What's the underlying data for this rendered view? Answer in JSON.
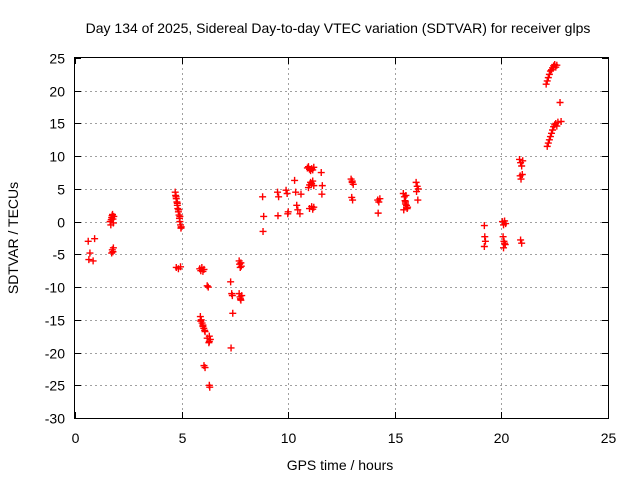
{
  "chart_data": {
    "type": "scatter",
    "title": "Day 134 of 2025, Sidereal Day-to-day VTEC variation (SDTVAR) for receiver glps",
    "xlabel": "GPS time / hours",
    "ylabel": "SDTVAR / TECUs",
    "xlim": [
      0,
      25
    ],
    "ylim": [
      -30,
      25
    ],
    "x_ticks": [
      0,
      5,
      10,
      15,
      20,
      25
    ],
    "y_ticks": [
      -30,
      -25,
      -20,
      -15,
      -10,
      -5,
      0,
      5,
      10,
      15,
      20,
      25
    ],
    "grid": true,
    "marker": "+",
    "series_color": "#ff0000",
    "series": [
      {
        "name": "SDTVAR",
        "x": [
          0.62,
          0.92,
          0.65,
          0.85,
          0.7,
          1.65,
          1.68,
          1.7,
          1.72,
          1.74,
          1.76,
          1.78,
          1.8,
          1.82,
          1.72,
          1.75,
          1.78,
          1.8,
          4.7,
          4.72,
          4.75,
          4.78,
          4.8,
          4.82,
          4.85,
          4.88,
          4.9,
          4.92,
          4.95,
          4.97,
          4.74,
          4.8,
          4.86,
          4.92,
          4.98,
          4.75,
          4.85,
          4.95,
          5.85,
          5.9,
          5.95,
          6.0,
          6.05,
          5.88,
          5.92,
          5.96,
          6.0,
          6.04,
          6.08,
          5.9,
          6.0,
          6.1,
          6.05,
          6.1,
          6.2,
          6.25,
          6.3,
          6.35,
          6.28,
          6.3,
          6.32,
          6.2,
          6.3,
          7.3,
          7.35,
          7.4,
          7.32,
          7.38,
          7.7,
          7.72,
          7.75,
          7.78,
          7.8,
          7.7,
          7.74,
          7.78,
          7.82,
          7.76,
          8.8,
          8.85,
          8.82,
          9.5,
          9.55,
          9.52,
          9.9,
          9.95,
          10.0,
          9.98,
          10.3,
          10.35,
          10.4,
          10.45,
          10.6,
          10.55,
          10.9,
          10.95,
          11.0,
          11.05,
          11.1,
          11.15,
          11.2,
          10.95,
          11.0,
          11.05,
          11.1,
          11.15,
          11.2,
          11.0,
          11.1,
          11.15,
          11.2,
          11.55,
          11.6,
          11.58,
          12.95,
          13.0,
          13.05,
          12.98,
          13.02,
          13.0,
          14.2,
          14.25,
          14.3,
          14.22,
          15.4,
          15.45,
          15.5,
          15.55,
          15.6,
          15.42,
          15.48,
          15.52,
          15.58,
          15.5,
          16.0,
          16.05,
          16.1,
          16.02,
          16.08,
          19.2,
          19.22,
          19.25,
          19.2,
          20.05,
          20.1,
          20.15,
          20.2,
          20.08,
          20.12,
          20.18,
          20.1,
          20.15,
          20.85,
          20.9,
          20.95,
          21.0,
          20.88,
          20.92,
          20.98,
          20.9,
          20.95,
          22.1,
          22.15,
          22.2,
          22.25,
          22.3,
          22.35,
          22.4,
          22.45,
          22.5,
          22.55,
          22.6,
          22.15,
          22.2,
          22.25,
          22.3,
          22.35,
          22.4,
          22.45,
          22.5,
          22.55,
          22.6,
          22.65,
          22.75,
          22.8
        ],
        "y": [
          -3.0,
          -2.6,
          -5.8,
          -6.0,
          -4.8,
          0.0,
          -0.5,
          0.3,
          0.6,
          0.9,
          1.1,
          0.4,
          -0.2,
          0.8,
          -4.8,
          -4.3,
          -4.6,
          -4.0,
          4.5,
          4.0,
          3.5,
          3.0,
          2.5,
          2.0,
          1.5,
          1.0,
          0.5,
          0.0,
          -0.5,
          -1.0,
          3.8,
          2.8,
          1.8,
          0.8,
          -0.8,
          -7.0,
          -7.2,
          -6.9,
          -7.2,
          -7.5,
          -7.0,
          -7.6,
          -7.3,
          -14.5,
          -15.0,
          -15.5,
          -16.0,
          -16.3,
          -16.6,
          -15.2,
          -15.8,
          -16.8,
          -22.0,
          -22.3,
          -9.8,
          -10.0,
          -17.5,
          -18.0,
          -18.5,
          -25.0,
          -25.3,
          -17.8,
          -18.3,
          -9.2,
          -11.0,
          -14.0,
          -19.3,
          -11.3,
          -6.0,
          -6.5,
          -7.0,
          -6.3,
          -6.8,
          -11.0,
          -11.5,
          -12.0,
          -11.3,
          -11.8,
          3.8,
          0.8,
          -1.5,
          4.5,
          3.8,
          0.9,
          4.8,
          4.3,
          1.5,
          1.2,
          6.3,
          4.5,
          2.5,
          1.8,
          4.2,
          1.2,
          8.2,
          8.4,
          8.0,
          7.8,
          8.1,
          7.9,
          8.3,
          5.2,
          5.6,
          6.0,
          5.8,
          6.2,
          5.5,
          2.0,
          2.3,
          1.9,
          2.2,
          7.5,
          5.5,
          4.2,
          6.5,
          6.0,
          5.7,
          3.7,
          3.3,
          6.2,
          3.3,
          3.0,
          3.5,
          1.3,
          4.3,
          3.8,
          3.0,
          2.5,
          2.2,
          1.8,
          3.2,
          4.0,
          2.0,
          2.7,
          6.0,
          5.4,
          5.0,
          4.6,
          3.3,
          -0.6,
          -2.3,
          -3.0,
          -3.8,
          0.0,
          -0.5,
          0.1,
          -0.3,
          -2.3,
          -3.0,
          -3.5,
          -4.0,
          -3.3,
          9.5,
          9.0,
          8.5,
          9.3,
          7.0,
          6.5,
          7.2,
          -2.8,
          -3.3,
          21.0,
          21.5,
          22.0,
          22.5,
          23.0,
          23.2,
          23.5,
          23.8,
          24.0,
          23.6,
          23.9,
          11.5,
          12.0,
          12.5,
          13.0,
          13.5,
          14.0,
          14.5,
          14.8,
          15.0,
          14.6,
          15.2,
          18.2,
          15.3
        ]
      }
    ]
  }
}
